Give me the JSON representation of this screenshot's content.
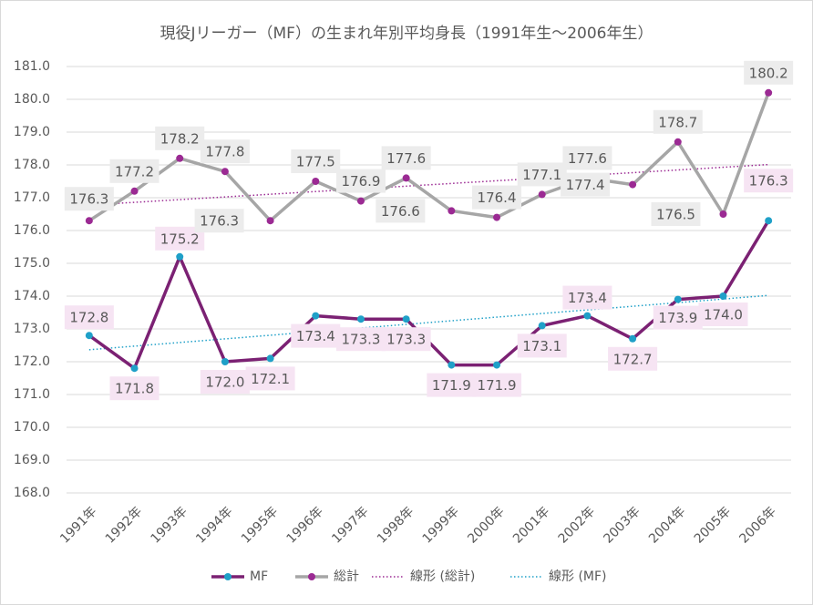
{
  "chart_data": {
    "type": "line",
    "title": "現役Jリーガー（MF）の生まれ年別平均身長（1991年生～2006年生）",
    "categories": [
      "1991年",
      "1992年",
      "1993年",
      "1994年",
      "1995年",
      "1996年",
      "1997年",
      "1998年",
      "1999年",
      "2000年",
      "2001年",
      "2002年",
      "2003年",
      "2004年",
      "2005年",
      "2006年"
    ],
    "series": [
      {
        "name": "MF",
        "color": "#7b2173",
        "marker_color": "#1fa0c8",
        "values": [
          172.8,
          171.8,
          175.2,
          172.0,
          172.1,
          173.4,
          173.3,
          173.3,
          171.9,
          171.9,
          173.1,
          173.4,
          172.7,
          173.9,
          174.0,
          176.3
        ],
        "value_labels": [
          "172.8",
          "171.8",
          "175.2",
          "172.0",
          "172.1",
          "173.4",
          "173.3",
          "173.3",
          "171.9",
          "171.9",
          "173.1",
          "173.4",
          "172.7",
          "173.9",
          "174.0",
          "176.3"
        ],
        "trendline": {
          "name": "線形 (MF)",
          "color": "#1fa0c8"
        }
      },
      {
        "name": "総計",
        "color": "#a6a6a6",
        "marker_color": "#9b2a93",
        "values": [
          176.3,
          177.2,
          178.2,
          177.8,
          176.3,
          177.5,
          176.9,
          177.6,
          176.6,
          176.4,
          177.1,
          177.6,
          177.4,
          178.7,
          176.5,
          180.2
        ],
        "trendline": {
          "name": "線形 (総計)",
          "color": "#9b2a93"
        }
      }
    ],
    "ylim": [
      168.0,
      181.0
    ],
    "yticks": [
      {
        "value": 168,
        "label": "168.0"
      },
      {
        "value": 169,
        "label": "169.0"
      },
      {
        "value": 170,
        "label": "170.0"
      },
      {
        "value": 171,
        "label": "171.0"
      },
      {
        "value": 172,
        "label": "172.0"
      },
      {
        "value": 173,
        "label": "173.0"
      },
      {
        "value": 174,
        "label": "174.0"
      },
      {
        "value": 175,
        "label": "175.0"
      },
      {
        "value": 176,
        "label": "176.0"
      },
      {
        "value": 177,
        "label": "177.0"
      },
      {
        "value": 178,
        "label": "178.0"
      },
      {
        "value": 179,
        "label": "179.0"
      },
      {
        "value": 180,
        "label": "180.0"
      },
      {
        "value": 181,
        "label": "181.0"
      }
    ],
    "grid": true
  }
}
